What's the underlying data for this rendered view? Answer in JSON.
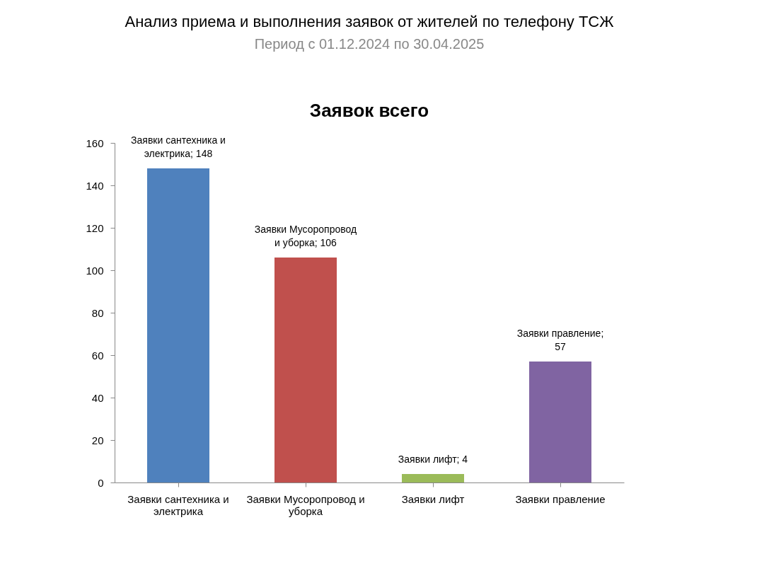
{
  "chart_data": {
    "type": "bar",
    "title": "Анализ приема и выполнения заявок от жителей по телефону ТСЖ",
    "subtitle": "Период с 01.12.2024 по 30.04.2025",
    "annotations": [
      "Заявок всего"
    ],
    "categories": [
      "Заявки сантехника и электрика",
      "Заявки Мусоропровод и уборка",
      "Заявки лифт",
      "Заявки правление"
    ],
    "values": [
      148,
      106,
      4,
      57
    ],
    "colors": [
      "#4f81bd",
      "#c0504d",
      "#9bbb59",
      "#8064a2"
    ],
    "value_labels": [
      "Заявки сантехника и электрика; 148",
      "Заявки Мусоропровод и уборка; 106",
      "Заявки лифт; 4",
      "Заявки правление; 57"
    ],
    "ylim": [
      0,
      160
    ],
    "yticks": [
      0,
      20,
      40,
      60,
      80,
      100,
      120,
      140,
      160
    ],
    "grid": false
  }
}
